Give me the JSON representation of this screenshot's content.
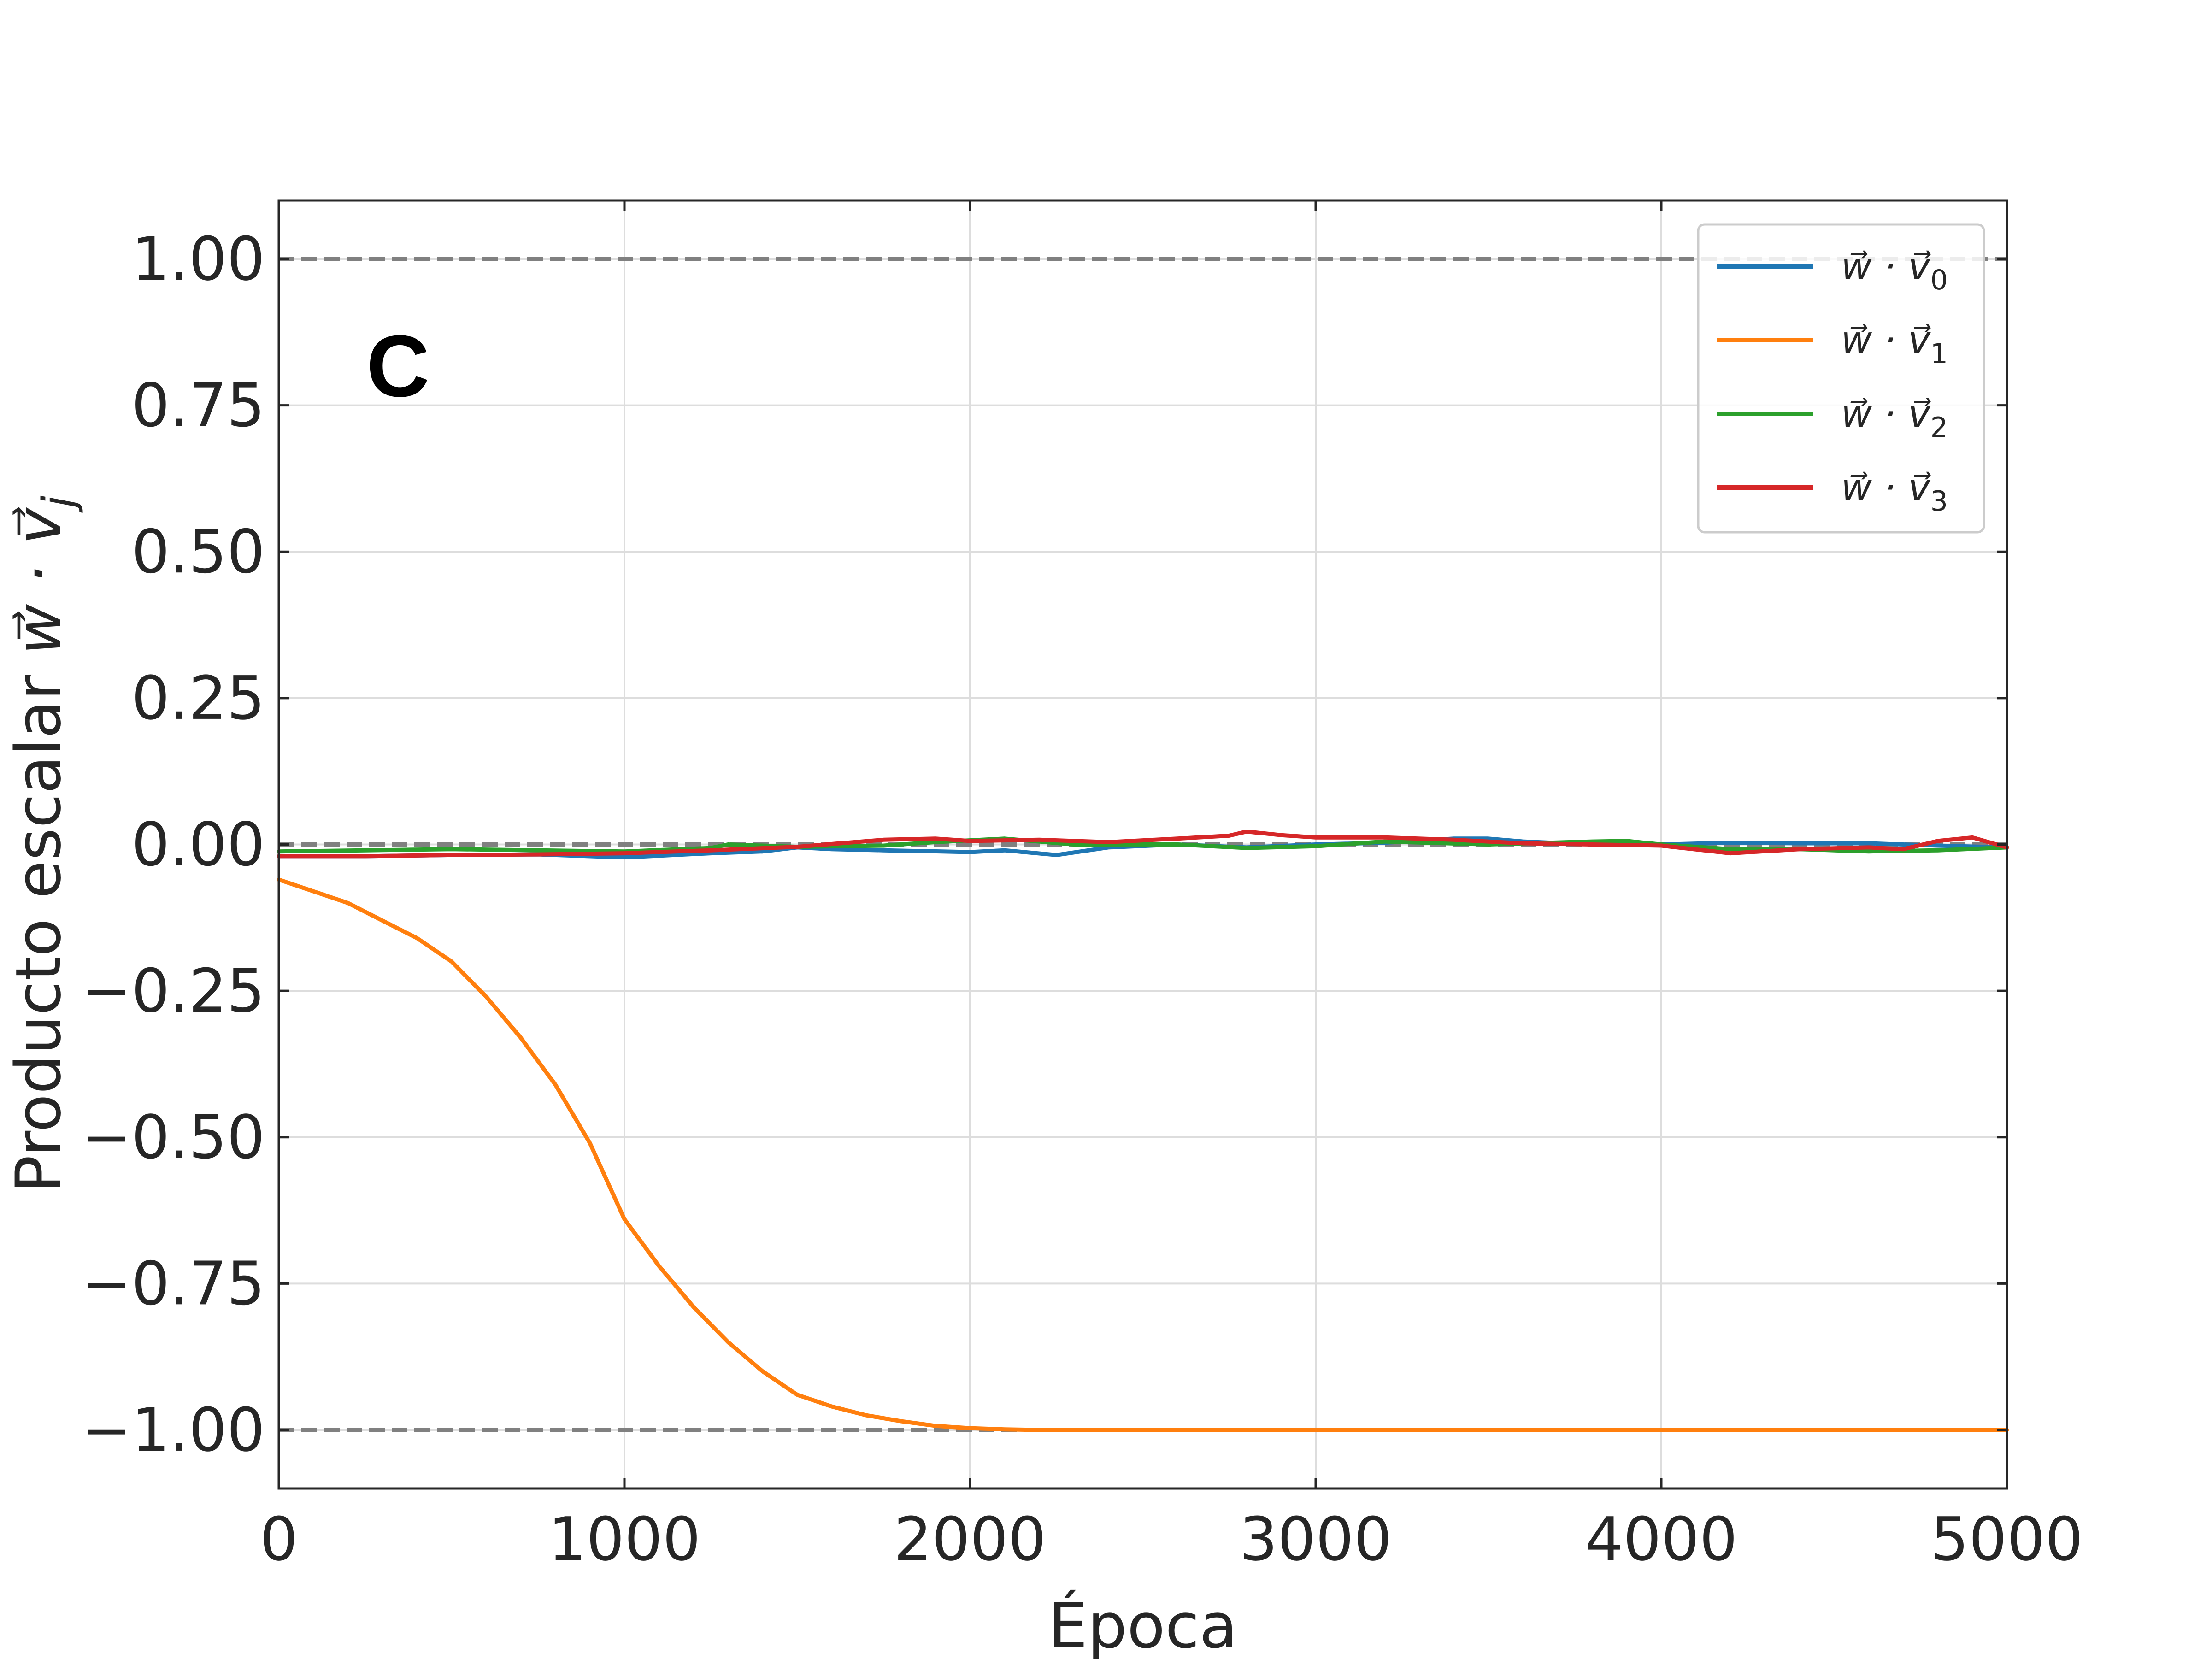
{
  "chart_data": {
    "type": "line",
    "panel_label": "C",
    "xlabel": "Época",
    "ylabel_text": "Producto escalar ",
    "ylabel_math": "w⃗ · v⃗",
    "ylabel_sub": "j",
    "xlim": [
      0,
      5000
    ],
    "ylim": [
      -1.1,
      1.1
    ],
    "x_ticks": [
      0,
      1000,
      2000,
      3000,
      4000,
      5000
    ],
    "x_tick_labels": [
      "0",
      "1000",
      "2000",
      "3000",
      "4000",
      "5000"
    ],
    "y_ticks": [
      1.0,
      0.75,
      0.5,
      0.25,
      0.0,
      -0.25,
      -0.5,
      -0.75,
      -1.0
    ],
    "y_tick_labels": [
      "1.00",
      "0.75",
      "0.50",
      "0.25",
      "0.00",
      "−0.25",
      "−0.50",
      "−0.75",
      "−1.00"
    ],
    "grid": true,
    "legend_position": "top-right",
    "reference_lines": [
      {
        "y": 1.0,
        "color": "#808080",
        "style": "dashed"
      },
      {
        "y": 0.0,
        "color": "#808080",
        "style": "dashed"
      },
      {
        "y": -1.0,
        "color": "#808080",
        "style": "dashed"
      }
    ],
    "series": [
      {
        "name": "w⃗ · v⃗",
        "name_sub": "0",
        "color": "#1f77b4",
        "x": [
          0,
          250,
          500,
          750,
          1000,
          1250,
          1400,
          1500,
          1600,
          1750,
          2000,
          2100,
          2250,
          2400,
          2600,
          2800,
          3000,
          3200,
          3400,
          3500,
          3600,
          3800,
          4000,
          4200,
          4400,
          4600,
          4800,
          5000
        ],
        "y": [
          -0.02,
          -0.02,
          -0.018,
          -0.017,
          -0.022,
          -0.015,
          -0.012,
          -0.005,
          -0.008,
          -0.01,
          -0.013,
          -0.01,
          -0.018,
          -0.005,
          0.0,
          -0.005,
          0.0,
          0.003,
          0.01,
          0.01,
          0.005,
          0.0,
          0.0,
          0.003,
          0.002,
          0.002,
          -0.002,
          -0.005
        ]
      },
      {
        "name": "w⃗ · v⃗",
        "name_sub": "1",
        "color": "#ff7f0e",
        "x": [
          0,
          100,
          200,
          300,
          400,
          500,
          600,
          700,
          800,
          900,
          1000,
          1100,
          1200,
          1300,
          1400,
          1500,
          1600,
          1700,
          1800,
          1900,
          2000,
          2100,
          2200,
          2300,
          2500,
          3000,
          4000,
          5000
        ],
        "y": [
          -0.06,
          -0.08,
          -0.1,
          -0.13,
          -0.16,
          -0.2,
          -0.26,
          -0.33,
          -0.41,
          -0.51,
          -0.64,
          -0.72,
          -0.79,
          -0.85,
          -0.9,
          -0.94,
          -0.96,
          -0.975,
          -0.985,
          -0.993,
          -0.997,
          -0.999,
          -1.0,
          -1.0,
          -1.0,
          -1.0,
          -1.0,
          -1.0
        ]
      },
      {
        "name": "w⃗ · v⃗",
        "name_sub": "2",
        "color": "#2ca02c",
        "x": [
          0,
          250,
          500,
          750,
          1000,
          1250,
          1300,
          1500,
          1750,
          1900,
          2100,
          2300,
          2600,
          2800,
          3000,
          3200,
          3500,
          3800,
          3900,
          4000,
          4200,
          4400,
          4600,
          4800,
          5000
        ],
        "y": [
          -0.012,
          -0.01,
          -0.008,
          -0.01,
          -0.012,
          -0.006,
          0.0,
          -0.004,
          -0.002,
          0.004,
          0.01,
          0.0,
          0.0,
          -0.006,
          -0.003,
          0.005,
          0.0,
          0.005,
          0.006,
          0.0,
          -0.008,
          -0.008,
          -0.012,
          -0.01,
          -0.005
        ]
      },
      {
        "name": "w⃗ · v⃗",
        "name_sub": "3",
        "color": "#d62728",
        "x": [
          0,
          250,
          500,
          750,
          1000,
          1250,
          1500,
          1750,
          1900,
          2000,
          2200,
          2400,
          2600,
          2750,
          2800,
          2900,
          3000,
          3200,
          3400,
          3600,
          3800,
          4000,
          4200,
          4400,
          4600,
          4700,
          4800,
          4900,
          5000
        ],
        "y": [
          -0.02,
          -0.02,
          -0.018,
          -0.017,
          -0.015,
          -0.01,
          -0.004,
          0.008,
          0.01,
          0.006,
          0.008,
          0.004,
          0.01,
          0.015,
          0.022,
          0.016,
          0.012,
          0.012,
          0.008,
          0.002,
          0.0,
          -0.002,
          -0.015,
          -0.008,
          -0.005,
          -0.008,
          0.006,
          0.012,
          -0.005
        ]
      }
    ]
  }
}
